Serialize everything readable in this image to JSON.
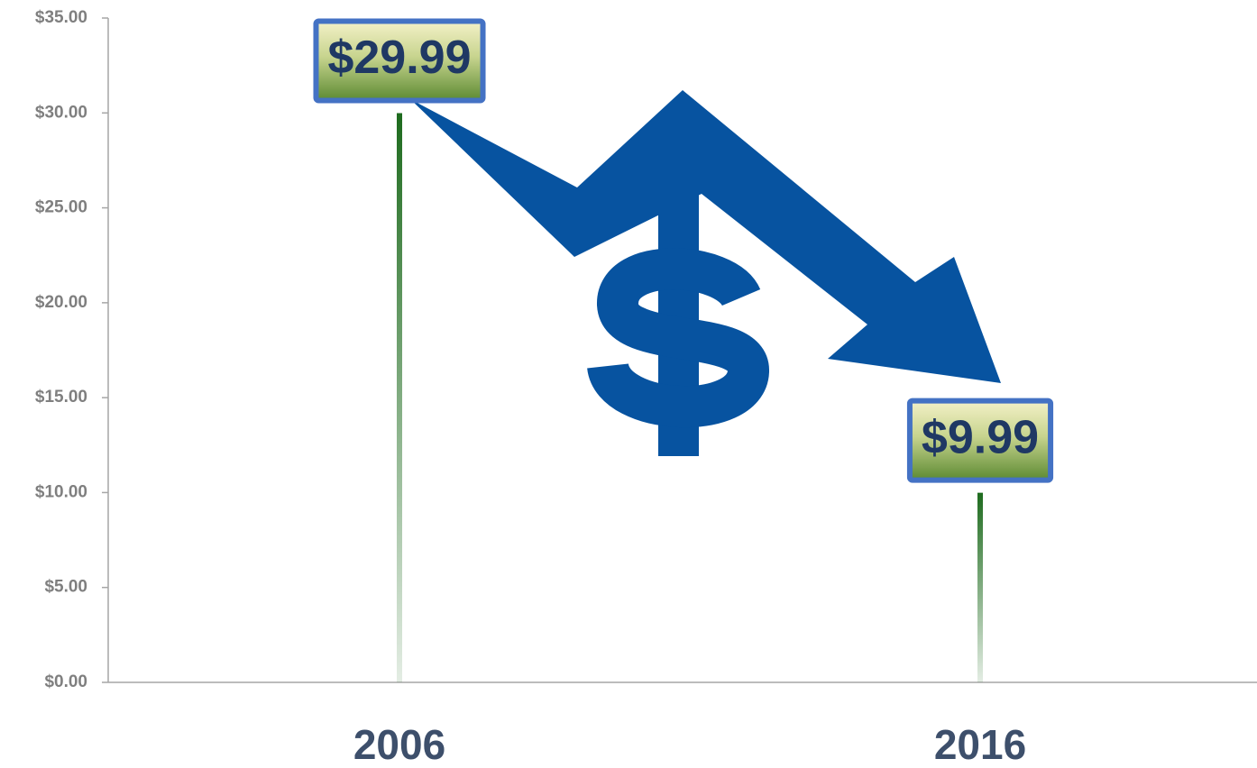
{
  "chart_data": {
    "type": "bar",
    "categories": [
      "2006",
      "2016"
    ],
    "values": [
      29.99,
      9.99
    ],
    "value_labels": [
      "$29.99",
      "$9.99"
    ],
    "color": "#1e6b1e",
    "ylim": [
      0,
      35
    ],
    "yticks": [
      {
        "value": 0,
        "label": "$0.00"
      },
      {
        "value": 5,
        "label": "$5.00"
      },
      {
        "value": 10,
        "label": "$10.00"
      },
      {
        "value": 15,
        "label": "$15.00"
      },
      {
        "value": 20,
        "label": "$20.00"
      },
      {
        "value": 25,
        "label": "$25.00"
      },
      {
        "value": 30,
        "label": "$30.00"
      },
      {
        "value": 35,
        "label": "$35.00"
      }
    ]
  }
}
